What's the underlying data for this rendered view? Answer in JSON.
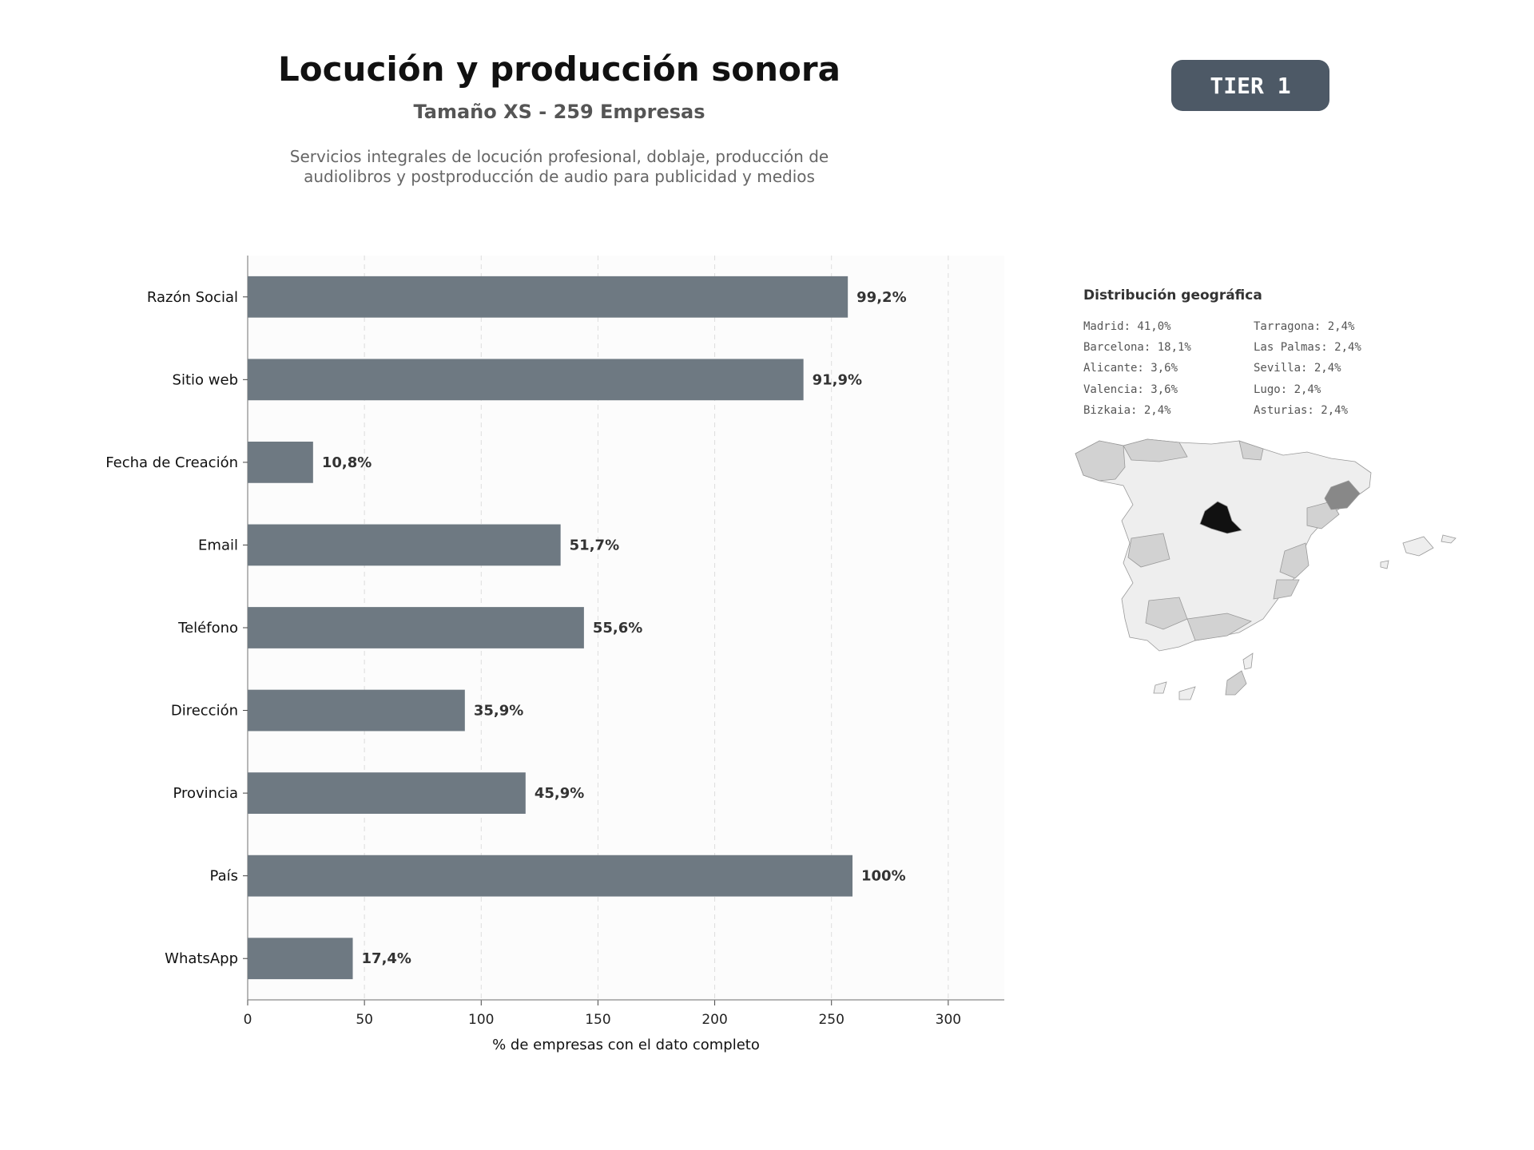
{
  "header": {
    "title": "Locución y producción sonora",
    "subtitle": "Tamaño XS - 259 Empresas",
    "description_line1": "Servicios integrales de locución profesional, doblaje, producción de",
    "description_line2": "audiolibros y postproducción de audio para publicidad y medios"
  },
  "badge": {
    "label": "TIER 1",
    "color": "#4d5966"
  },
  "chart_data": {
    "type": "bar",
    "orientation": "horizontal",
    "categories": [
      "Razón Social",
      "Sitio web",
      "Fecha de Creación",
      "Email",
      "Teléfono",
      "Dirección",
      "Provincia",
      "País",
      "WhatsApp"
    ],
    "values": [
      257,
      238,
      28,
      134,
      144,
      93,
      119,
      259,
      45
    ],
    "data_labels": [
      "99,2%",
      "91,9%",
      "10,8%",
      "51,7%",
      "55,6%",
      "35,9%",
      "45,9%",
      "100%",
      "17,4%"
    ],
    "xlabel": "% de empresas con el dato completo",
    "ylabel": "",
    "xlim": [
      0,
      324
    ],
    "xticks": [
      0,
      50,
      100,
      150,
      200,
      250,
      300
    ],
    "grid": "vertical dashed",
    "bar_color": "#6e7982"
  },
  "geo": {
    "title": "Distribución geográfica",
    "items": [
      "Madrid: 41,0%",
      "Tarragona: 2,4%",
      "Barcelona: 18,1%",
      "Las Palmas: 2,4%",
      "Alicante: 3,6%",
      "Sevilla: 2,4%",
      "Valencia: 3,6%",
      "Lugo: 2,4%",
      "Bizkaia: 2,4%",
      "Asturias: 2,4%"
    ],
    "colors": {
      "highest": "#111111",
      "high": "#888888",
      "medium": "#d2d2d2",
      "low": "#eeeeee"
    }
  }
}
